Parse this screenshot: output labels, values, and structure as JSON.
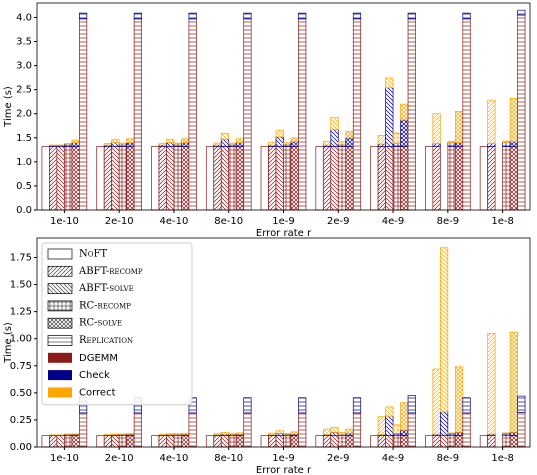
{
  "methods": [
    {
      "name": "NoFT",
      "hatch": "none"
    },
    {
      "name": "ABFT-recomp",
      "hatch": "diagonal"
    },
    {
      "name": "ABFT-solve",
      "hatch": "back-diagonal"
    },
    {
      "name": "RC-recomp",
      "hatch": "grid"
    },
    {
      "name": "RC-solve",
      "hatch": "cross"
    },
    {
      "name": "Replication",
      "hatch": "horizontal"
    }
  ],
  "components": [
    {
      "name": "DGEMM",
      "color": "#8b1a1a"
    },
    {
      "name": "Check",
      "color": "#00008b"
    },
    {
      "name": "Correct",
      "color": "#ffa500"
    }
  ],
  "chart_data": [
    {
      "type": "bar",
      "xlabel": "Error rate r",
      "ylabel": "Time (s)",
      "categories": [
        "1e-10",
        "2e-10",
        "4e-10",
        "8e-10",
        "1e-9",
        "2e-9",
        "4e-9",
        "8e-9",
        "1e-8"
      ],
      "ylim": [
        0,
        4.3
      ],
      "yticks": [
        {
          "value": 0,
          "label": "0.0"
        },
        0.5,
        {
          "value": 1,
          "label": "1.0"
        },
        1.5,
        {
          "value": 2,
          "label": "2.0"
        },
        2.5,
        {
          "value": 3,
          "label": "3.0"
        },
        3.5,
        {
          "value": 4,
          "label": "4.0"
        }
      ],
      "series": [
        {
          "values": [
            [
              1.32,
              1.32,
              1.32,
              1.32,
              1.32,
              3.97
            ],
            [
              1.32,
              1.32,
              1.32,
              1.32,
              1.32,
              3.97
            ],
            [
              1.32,
              1.32,
              1.32,
              1.32,
              1.32,
              3.97
            ],
            [
              1.32,
              1.32,
              1.32,
              1.32,
              1.32,
              3.97
            ],
            [
              1.32,
              1.32,
              1.32,
              1.32,
              1.32,
              3.97
            ],
            [
              1.32,
              1.32,
              1.32,
              1.32,
              1.32,
              3.97
            ],
            [
              1.32,
              1.32,
              1.32,
              1.32,
              1.32,
              3.97
            ],
            [
              1.32,
              1.32,
              null,
              1.32,
              1.32,
              3.97
            ],
            [
              1.32,
              1.32,
              null,
              1.32,
              1.32,
              4.05
            ]
          ]
        },
        {
          "values": [
            [
              0,
              0.02,
              0.02,
              0.05,
              0.08,
              0.12
            ],
            [
              0,
              0.03,
              0.08,
              0.05,
              0.08,
              0.12
            ],
            [
              0,
              0.03,
              0.08,
              0.05,
              0.08,
              0.12
            ],
            [
              0,
              0.03,
              0.15,
              0.05,
              0.08,
              0.12
            ],
            [
              0,
              0.03,
              0.2,
              0.05,
              0.1,
              0.12
            ],
            [
              0,
              0.03,
              0.35,
              0.05,
              0.18,
              0.12
            ],
            [
              0,
              0.05,
              1.22,
              0.06,
              0.55,
              0.12
            ],
            [
              0,
              0.06,
              null,
              0.08,
              0.08,
              0.12
            ],
            [
              0,
              0.06,
              null,
              0.08,
              0.1,
              0.1
            ]
          ]
        },
        {
          "values": [
            [
              0,
              0.01,
              0.01,
              0.01,
              0.05,
              0
            ],
            [
              0,
              0.03,
              0.06,
              0.02,
              0.08,
              0
            ],
            [
              0,
              0.03,
              0.07,
              0.02,
              0.08,
              0
            ],
            [
              0,
              0.04,
              0.12,
              0.02,
              0.08,
              0
            ],
            [
              0,
              0.05,
              0.13,
              0.03,
              0.08,
              0
            ],
            [
              0,
              0.08,
              0.25,
              0.05,
              0.13,
              0
            ],
            [
              0,
              0.18,
              0.2,
              0.22,
              0.33,
              0
            ],
            [
              0,
              0.62,
              null,
              0.02,
              0.65,
              0
            ],
            [
              0,
              0.9,
              null,
              0.03,
              0.9,
              0
            ]
          ]
        }
      ]
    },
    {
      "type": "bar",
      "xlabel": "Error rate r",
      "ylabel": "Time (s)",
      "categories": [
        "1e-10",
        "2e-10",
        "4e-10",
        "8e-10",
        "1e-9",
        "2e-9",
        "4e-9",
        "8e-9",
        "1e-8"
      ],
      "ylim": [
        0,
        1.93
      ],
      "yticks": [
        {
          "value": 0,
          "label": "0.00"
        },
        {
          "value": 0.25,
          "label": "0.25"
        },
        {
          "value": 0.5,
          "label": "0.50"
        },
        {
          "value": 0.75,
          "label": "0.75"
        },
        {
          "value": 1,
          "label": "1.00"
        },
        {
          "value": 1.25,
          "label": "1.25"
        },
        {
          "value": 1.5,
          "label": "1.50"
        },
        {
          "value": 1.75,
          "label": "1.75"
        }
      ],
      "series": [
        {
          "values": [
            [
              0.105,
              0.105,
              0.105,
              0.105,
              0.105,
              0.315
            ],
            [
              0.105,
              0.105,
              0.105,
              0.105,
              0.105,
              0.315
            ],
            [
              0.105,
              0.105,
              0.105,
              0.105,
              0.105,
              0.315
            ],
            [
              0.105,
              0.105,
              0.105,
              0.105,
              0.105,
              0.315
            ],
            [
              0.105,
              0.105,
              0.105,
              0.105,
              0.105,
              0.315
            ],
            [
              0.105,
              0.105,
              0.105,
              0.105,
              0.105,
              0.315
            ],
            [
              0.105,
              0.105,
              0.105,
              0.105,
              0.105,
              0.315
            ],
            [
              0.105,
              0.105,
              0.105,
              0.105,
              0.105,
              0.315
            ],
            [
              0.105,
              0.105,
              null,
              0.105,
              0.105,
              0.32
            ]
          ]
        },
        {
          "values": [
            [
              0,
              0.005,
              0.005,
              0.012,
              0.012,
              0.14
            ],
            [
              0,
              0.006,
              0.008,
              0.012,
              0.012,
              0.14
            ],
            [
              0,
              0.006,
              0.01,
              0.012,
              0.012,
              0.14
            ],
            [
              0,
              0.008,
              0.015,
              0.012,
              0.012,
              0.14
            ],
            [
              0,
              0.008,
              0.02,
              0.012,
              0.015,
              0.14
            ],
            [
              0,
              0.01,
              0.03,
              0.015,
              0.02,
              0.14
            ],
            [
              0,
              0.01,
              0.18,
              0.02,
              0.05,
              0.16
            ],
            [
              0,
              0.015,
              0.22,
              0.02,
              0.03,
              0.14
            ],
            [
              0,
              0.015,
              null,
              0.02,
              0.03,
              0.15
            ]
          ]
        },
        {
          "values": [
            [
              0,
              0.002,
              0.002,
              0.003,
              0.005,
              0
            ],
            [
              0,
              0.004,
              0.007,
              0.004,
              0.007,
              0
            ],
            [
              0,
              0.005,
              0.008,
              0.005,
              0.01,
              0
            ],
            [
              0,
              0.01,
              0.015,
              0.006,
              0.013,
              0
            ],
            [
              0,
              0.015,
              0.025,
              0.008,
              0.02,
              0
            ],
            [
              0,
              0.05,
              0.045,
              0.015,
              0.04,
              0
            ],
            [
              0,
              0.165,
              0.085,
              0.08,
              0.255,
              0
            ],
            [
              0,
              0.6,
              1.515,
              0.005,
              0.605,
              0
            ],
            [
              0,
              0.93,
              null,
              0.005,
              0.925,
              0
            ]
          ]
        }
      ]
    }
  ]
}
